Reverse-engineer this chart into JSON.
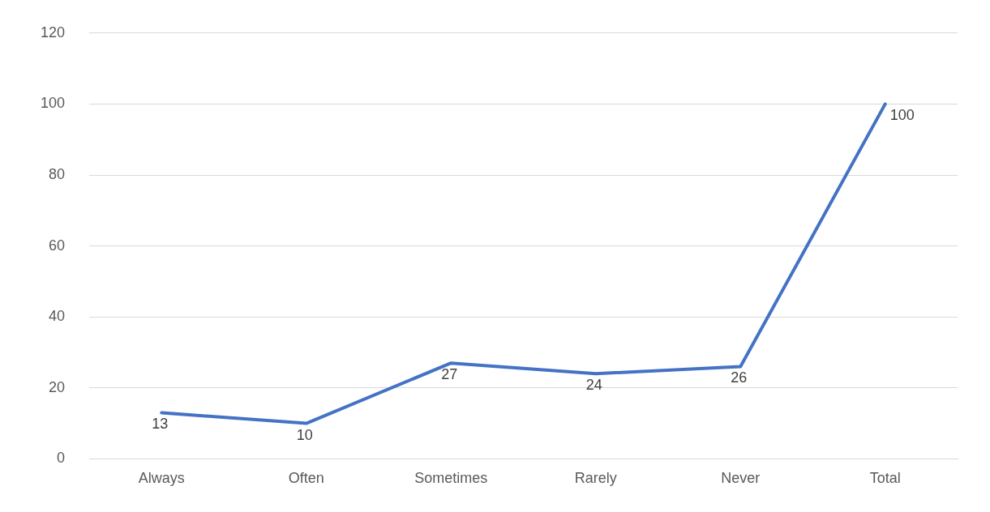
{
  "chart_data": {
    "type": "line",
    "categories": [
      "Always",
      "Often",
      "Sometimes",
      "Rarely",
      "Never",
      "Total"
    ],
    "series": [
      {
        "color": "#4472c4",
        "values": [
          13,
          10,
          27,
          24,
          26,
          100
        ]
      }
    ],
    "data_labels": true,
    "ylim": [
      0,
      120
    ],
    "yticks": [
      0,
      20,
      40,
      60,
      80,
      100,
      120
    ],
    "grid": "y",
    "legend": false,
    "marker": "none",
    "line_style": "solid"
  }
}
